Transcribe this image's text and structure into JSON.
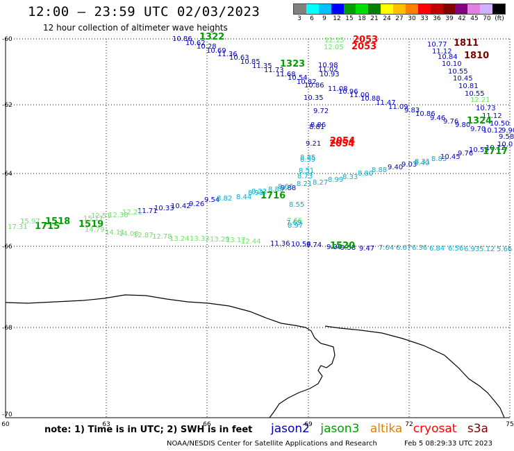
{
  "header": {
    "title": "12:00 – 23:59 UTC 02/03/2023",
    "subtitle": "12 hour collection of altimeter wave heights"
  },
  "colorbar": {
    "colors": [
      "#808080",
      "#00ffff",
      "#00c0ff",
      "#0000ff",
      "#00a000",
      "#00e000",
      "#008000",
      "#ffff00",
      "#ffc000",
      "#ff8000",
      "#ff0000",
      "#c00000",
      "#800000",
      "#800080",
      "#e080e0",
      "#d0b0ff",
      "#000000"
    ],
    "labels": [
      "3",
      "6",
      "9",
      "12",
      "15",
      "18",
      "21",
      "24",
      "27",
      "30",
      "33",
      "36",
      "39",
      "42",
      "45",
      "70",
      "(ft)"
    ]
  },
  "axes": {
    "lat_labels": [
      "-60",
      "-62",
      "-64",
      "-66",
      "-68",
      "-70"
    ],
    "lon_labels": [
      "60",
      "63",
      "66",
      "69",
      "72",
      "75"
    ]
  },
  "series": {
    "jason2_color": "#0000c0",
    "jason3_color": "#00a000",
    "altika_color": "#e08000",
    "cryosat_color": "#ff0000",
    "s3a_color": "#800000",
    "light_green": "#70e070",
    "cyan": "#00b0d0"
  },
  "marks": [
    {
      "t": "10.86",
      "c": "jason2"
    },
    {
      "t": "10.62",
      "c": "jason2"
    },
    {
      "t": "10.28",
      "c": "jason2"
    },
    {
      "t": "10.69",
      "c": "jason2"
    },
    {
      "t": "11.36",
      "c": "jason2"
    },
    {
      "t": "10.63",
      "c": "jason2"
    },
    {
      "t": "10.85",
      "c": "jason2"
    },
    {
      "t": "11.35",
      "c": "jason2"
    },
    {
      "t": "11.73",
      "c": "jason2"
    },
    {
      "t": "11.68",
      "c": "jason2"
    },
    {
      "t": "10.54",
      "c": "jason2"
    },
    {
      "t": "10.82",
      "c": "jason2"
    },
    {
      "t": "10.86",
      "c": "jason2"
    },
    {
      "t": "11.08",
      "c": "jason2"
    },
    {
      "t": "10.96",
      "c": "jason2"
    },
    {
      "t": "11.00",
      "c": "jason2"
    },
    {
      "t": "10.88",
      "c": "jason2"
    },
    {
      "t": "11.47",
      "c": "jason2"
    },
    {
      "t": "11.09",
      "c": "jason2"
    },
    {
      "t": "10.35",
      "c": "jason2"
    },
    {
      "t": "10.98",
      "c": "jason2"
    },
    {
      "t": "11.02",
      "c": "jason2"
    },
    {
      "t": "10.93",
      "c": "jason2"
    },
    {
      "t": "9.72",
      "c": "jason2"
    },
    {
      "t": "8.86",
      "c": "jason2"
    },
    {
      "t": "8.81",
      "c": "jason2"
    },
    {
      "t": "9.21",
      "c": "jason2"
    },
    {
      "t": "9.83",
      "c": "jason2"
    },
    {
      "t": "10.86",
      "c": "jason2"
    },
    {
      "t": "9.46",
      "c": "jason2"
    },
    {
      "t": "9.76",
      "c": "jason2"
    },
    {
      "t": "9.80",
      "c": "jason2"
    },
    {
      "t": "9.70",
      "c": "jason2"
    },
    {
      "t": "10.77",
      "c": "jason2"
    },
    {
      "t": "11.12",
      "c": "jason2"
    },
    {
      "t": "10.84",
      "c": "jason2"
    },
    {
      "t": "10.10",
      "c": "jason2"
    },
    {
      "t": "10.55",
      "c": "jason2"
    },
    {
      "t": "10.45",
      "c": "jason2"
    },
    {
      "t": "10.81",
      "c": "jason2"
    },
    {
      "t": "10.55",
      "c": "jason2"
    },
    {
      "t": "10.73",
      "c": "jason2"
    },
    {
      "t": "11.12",
      "c": "jason2"
    },
    {
      "t": "10.50",
      "c": "jason2"
    },
    {
      "t": "10.12",
      "c": "jason2"
    },
    {
      "t": "9.90",
      "c": "jason2"
    },
    {
      "t": "9.58",
      "c": "jason2"
    },
    {
      "t": "10.0",
      "c": "jason2"
    },
    {
      "t": "10.55",
      "c": "jason2"
    },
    {
      "t": "10.12",
      "c": "jason2"
    },
    {
      "t": "9.76",
      "c": "jason2"
    },
    {
      "t": "10.45",
      "c": "jason2"
    },
    {
      "t": "9.40",
      "c": "jason2"
    },
    {
      "t": "9.03",
      "c": "jason2"
    },
    {
      "t": "11.71",
      "c": "jason2"
    },
    {
      "t": "10.33",
      "c": "jason2"
    },
    {
      "t": "10.42",
      "c": "jason2"
    },
    {
      "t": "9.26",
      "c": "jason2"
    },
    {
      "t": "9.54",
      "c": "jason2"
    },
    {
      "t": "11.36",
      "c": "jason2"
    },
    {
      "t": "10.58",
      "c": "jason2"
    },
    {
      "t": "9.74",
      "c": "jason2"
    },
    {
      "t": "9.36",
      "c": "jason2"
    },
    {
      "t": "9.58",
      "c": "jason2"
    },
    {
      "t": "9.47",
      "c": "jason2"
    },
    {
      "t": "9.88",
      "c": "jason2"
    },
    {
      "t": "1322",
      "c": "jason3",
      "b": 1
    },
    {
      "t": "1323",
      "c": "jason3",
      "b": 1
    },
    {
      "t": "1324",
      "c": "jason3",
      "b": 1
    },
    {
      "t": "1717",
      "c": "jason3",
      "b": 1
    },
    {
      "t": "1716",
      "c": "jason3",
      "b": 1
    },
    {
      "t": "1715",
      "c": "jason3",
      "b": 1
    },
    {
      "t": "1518",
      "c": "jason3",
      "b": 1
    },
    {
      "t": "1519",
      "c": "jason3",
      "b": 1
    },
    {
      "t": "1520",
      "c": "jason3",
      "b": 1
    },
    {
      "t": "12.15",
      "c": "light"
    },
    {
      "t": "12.05",
      "c": "light"
    },
    {
      "t": "12.21",
      "c": "light"
    },
    {
      "t": "15.97",
      "c": "light"
    },
    {
      "t": "17.31",
      "c": "light"
    },
    {
      "t": "15.17",
      "c": "light"
    },
    {
      "t": "12.51",
      "c": "light"
    },
    {
      "t": "12.38",
      "c": "light"
    },
    {
      "t": "12.21",
      "c": "light"
    },
    {
      "t": "14.79",
      "c": "light"
    },
    {
      "t": "14.11",
      "c": "light"
    },
    {
      "t": "14.08",
      "c": "light"
    },
    {
      "t": "12.87",
      "c": "light"
    },
    {
      "t": "12.78",
      "c": "light"
    },
    {
      "t": "13.24",
      "c": "light"
    },
    {
      "t": "13.33",
      "c": "light"
    },
    {
      "t": "13.29",
      "c": "light"
    },
    {
      "t": "13.17",
      "c": "light"
    },
    {
      "t": "12.44",
      "c": "light"
    },
    {
      "t": "7.66",
      "c": "light"
    },
    {
      "t": "2053",
      "c": "cryosat",
      "b": 1
    },
    {
      "t": "2053",
      "c": "cryosat",
      "b": 1
    },
    {
      "t": "2054",
      "c": "cryosat",
      "b": 1
    },
    {
      "t": "2054",
      "c": "cryosat",
      "b": 1
    },
    {
      "t": "1811",
      "c": "s3a",
      "b": 1
    },
    {
      "t": "1810",
      "c": "s3a",
      "b": 1
    },
    {
      "t": "8.35",
      "c": "cyan"
    },
    {
      "t": "8.59",
      "c": "cyan"
    },
    {
      "t": "8.51",
      "c": "cyan"
    },
    {
      "t": "8.73",
      "c": "cyan"
    },
    {
      "t": "8.27",
      "c": "cyan"
    },
    {
      "t": "8.99",
      "c": "cyan"
    },
    {
      "t": "8.33",
      "c": "cyan"
    },
    {
      "t": "8.80",
      "c": "cyan"
    },
    {
      "t": "8.88",
      "c": "cyan"
    },
    {
      "t": "8.31",
      "c": "cyan"
    },
    {
      "t": "8.83",
      "c": "cyan"
    },
    {
      "t": "8.40",
      "c": "cyan"
    },
    {
      "t": "8.82",
      "c": "cyan"
    },
    {
      "t": "8.44",
      "c": "cyan"
    },
    {
      "t": "8.93",
      "c": "cyan"
    },
    {
      "t": "8.23",
      "c": "cyan"
    },
    {
      "t": "8.88",
      "c": "cyan"
    },
    {
      "t": "8.66",
      "c": "cyan"
    },
    {
      "t": "8.55",
      "c": "cyan"
    },
    {
      "t": "7.69",
      "c": "cyan"
    },
    {
      "t": "8.97",
      "c": "cyan"
    },
    {
      "t": "7.64",
      "c": "cyan"
    },
    {
      "t": "6.67",
      "c": "cyan"
    },
    {
      "t": "6.36",
      "c": "cyan"
    },
    {
      "t": "6.84",
      "c": "cyan"
    },
    {
      "t": "6.56",
      "c": "cyan"
    },
    {
      "t": "6.93",
      "c": "cyan"
    },
    {
      "t": "5.12",
      "c": "cyan"
    },
    {
      "t": "5.66",
      "c": "cyan"
    },
    {
      "t": "8.21",
      "c": "cyan"
    }
  ],
  "footer": {
    "note": "note:  1) Time is in UTC;  2) SWH is in feet",
    "legend_jason2": "jason2",
    "legend_jason3": "jason3",
    "legend_altika": "altika",
    "legend_cryosat": "cryosat",
    "legend_s3a": "s3a",
    "credit": "NOAA/NESDIS Center for Satellite Applications and Research",
    "date": "Feb  5 08:29:33 UTC 2023"
  }
}
